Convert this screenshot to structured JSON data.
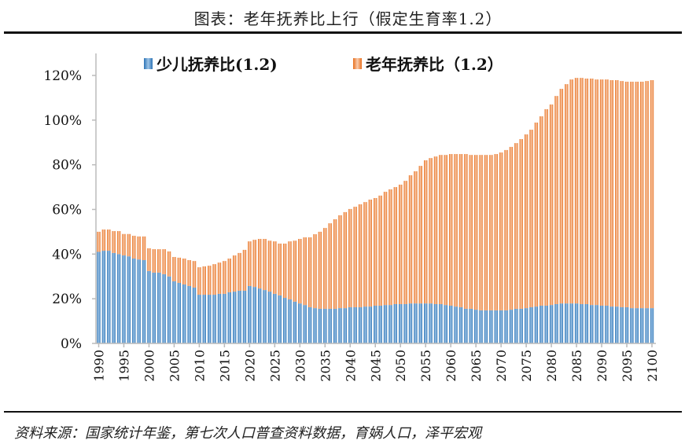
{
  "title": "图表：老年抚养比上行（假定生育率1.2）",
  "source": "资料来源：国家统计年鉴，第七次人口普查资料数据，育娲人口，泽平宏观",
  "colors": {
    "youth": "#2E75B6",
    "youth_light": "#9DC3E6",
    "elderly": "#E8701E",
    "elderly_light": "#F8CBAD"
  },
  "chart_data": {
    "type": "bar",
    "stacked": true,
    "title": "",
    "xlabel": "",
    "ylabel": "",
    "ylim": [
      0,
      120
    ],
    "yticks": [
      "0%",
      "20%",
      "40%",
      "60%",
      "80%",
      "100%",
      "120%"
    ],
    "xtick_labels": [
      "1990",
      "1995",
      "2000",
      "2005",
      "2010",
      "2015",
      "2020",
      "2025",
      "2030",
      "2035",
      "2040",
      "2045",
      "2050",
      "2055",
      "2060",
      "2065",
      "2070",
      "2075",
      "2080",
      "2085",
      "2090",
      "2095",
      "2100"
    ],
    "x_start": 1990,
    "x_end": 2100,
    "grid": false,
    "legend_position": "top",
    "series": [
      {
        "name": "少儿抚养比(1.2)",
        "values": [
          41,
          41.5,
          41.5,
          40.5,
          40,
          39.4,
          39,
          38,
          37.6,
          37.3,
          32.4,
          31.7,
          31.7,
          31,
          30,
          27.8,
          27.1,
          26.4,
          25.7,
          25,
          21.8,
          21.8,
          21.8,
          21.8,
          22.2,
          22.2,
          22.9,
          23.2,
          23.6,
          23.6,
          25.7,
          25.3,
          24.6,
          23.9,
          23.2,
          22.2,
          21.5,
          20.4,
          19.7,
          18.7,
          17.9,
          17.2,
          16.2,
          15.8,
          15.5,
          15.5,
          15.5,
          15.5,
          15.8,
          15.8,
          16.2,
          16.2,
          16.2,
          16.5,
          16.5,
          16.9,
          16.9,
          17.2,
          17.2,
          17.6,
          17.6,
          17.6,
          17.9,
          17.9,
          17.9,
          17.9,
          17.9,
          17.6,
          17.6,
          17.2,
          16.9,
          16.5,
          16.2,
          15.5,
          15.5,
          15.1,
          14.8,
          14.8,
          14.8,
          14.8,
          14.8,
          14.8,
          15.1,
          15.5,
          15.5,
          15.8,
          16.2,
          16.5,
          16.9,
          16.9,
          17.2,
          17.6,
          17.9,
          17.9,
          17.9,
          17.9,
          17.6,
          17.6,
          17.2,
          17.2,
          16.9,
          16.9,
          16.5,
          16.5,
          16.2,
          16.2,
          15.8,
          15.8,
          15.8,
          15.8,
          15.8
        ]
      },
      {
        "name": "老年抚养比（1.2）",
        "values": [
          9,
          9.5,
          9.5,
          9.8,
          10.3,
          9.6,
          10,
          10.2,
          10.3,
          10.6,
          10.2,
          10.5,
          10.5,
          11.2,
          11.2,
          10.9,
          11.3,
          11.6,
          11.6,
          11.9,
          12.3,
          12.7,
          13,
          13.7,
          14,
          14.7,
          15.1,
          16.2,
          16.9,
          18.3,
          20,
          21.1,
          22.2,
          22.9,
          22.8,
          23.5,
          23.2,
          24.3,
          26,
          27.3,
          28.9,
          30.3,
          31.3,
          33.1,
          34.5,
          36.2,
          38.3,
          40.1,
          41.6,
          43,
          44,
          45,
          46.1,
          46.8,
          47.9,
          48.2,
          49.3,
          50.7,
          51.8,
          52.4,
          53.5,
          55.2,
          57.4,
          59.2,
          61.6,
          64.1,
          65.1,
          66.1,
          66.8,
          67.2,
          67.9,
          68.3,
          68.6,
          69.3,
          68.9,
          69.3,
          69.6,
          69.6,
          69.6,
          70,
          70.7,
          71.8,
          72.9,
          74.2,
          76,
          77.8,
          79.5,
          82.4,
          84.8,
          88,
          89.8,
          93.2,
          96.1,
          98.2,
          100.3,
          101,
          101.3,
          101,
          101.4,
          101,
          101.3,
          101.3,
          101.4,
          101.4,
          101.3,
          101,
          101.4,
          101.4,
          101.4,
          101.7,
          102.1
        ]
      }
    ]
  }
}
